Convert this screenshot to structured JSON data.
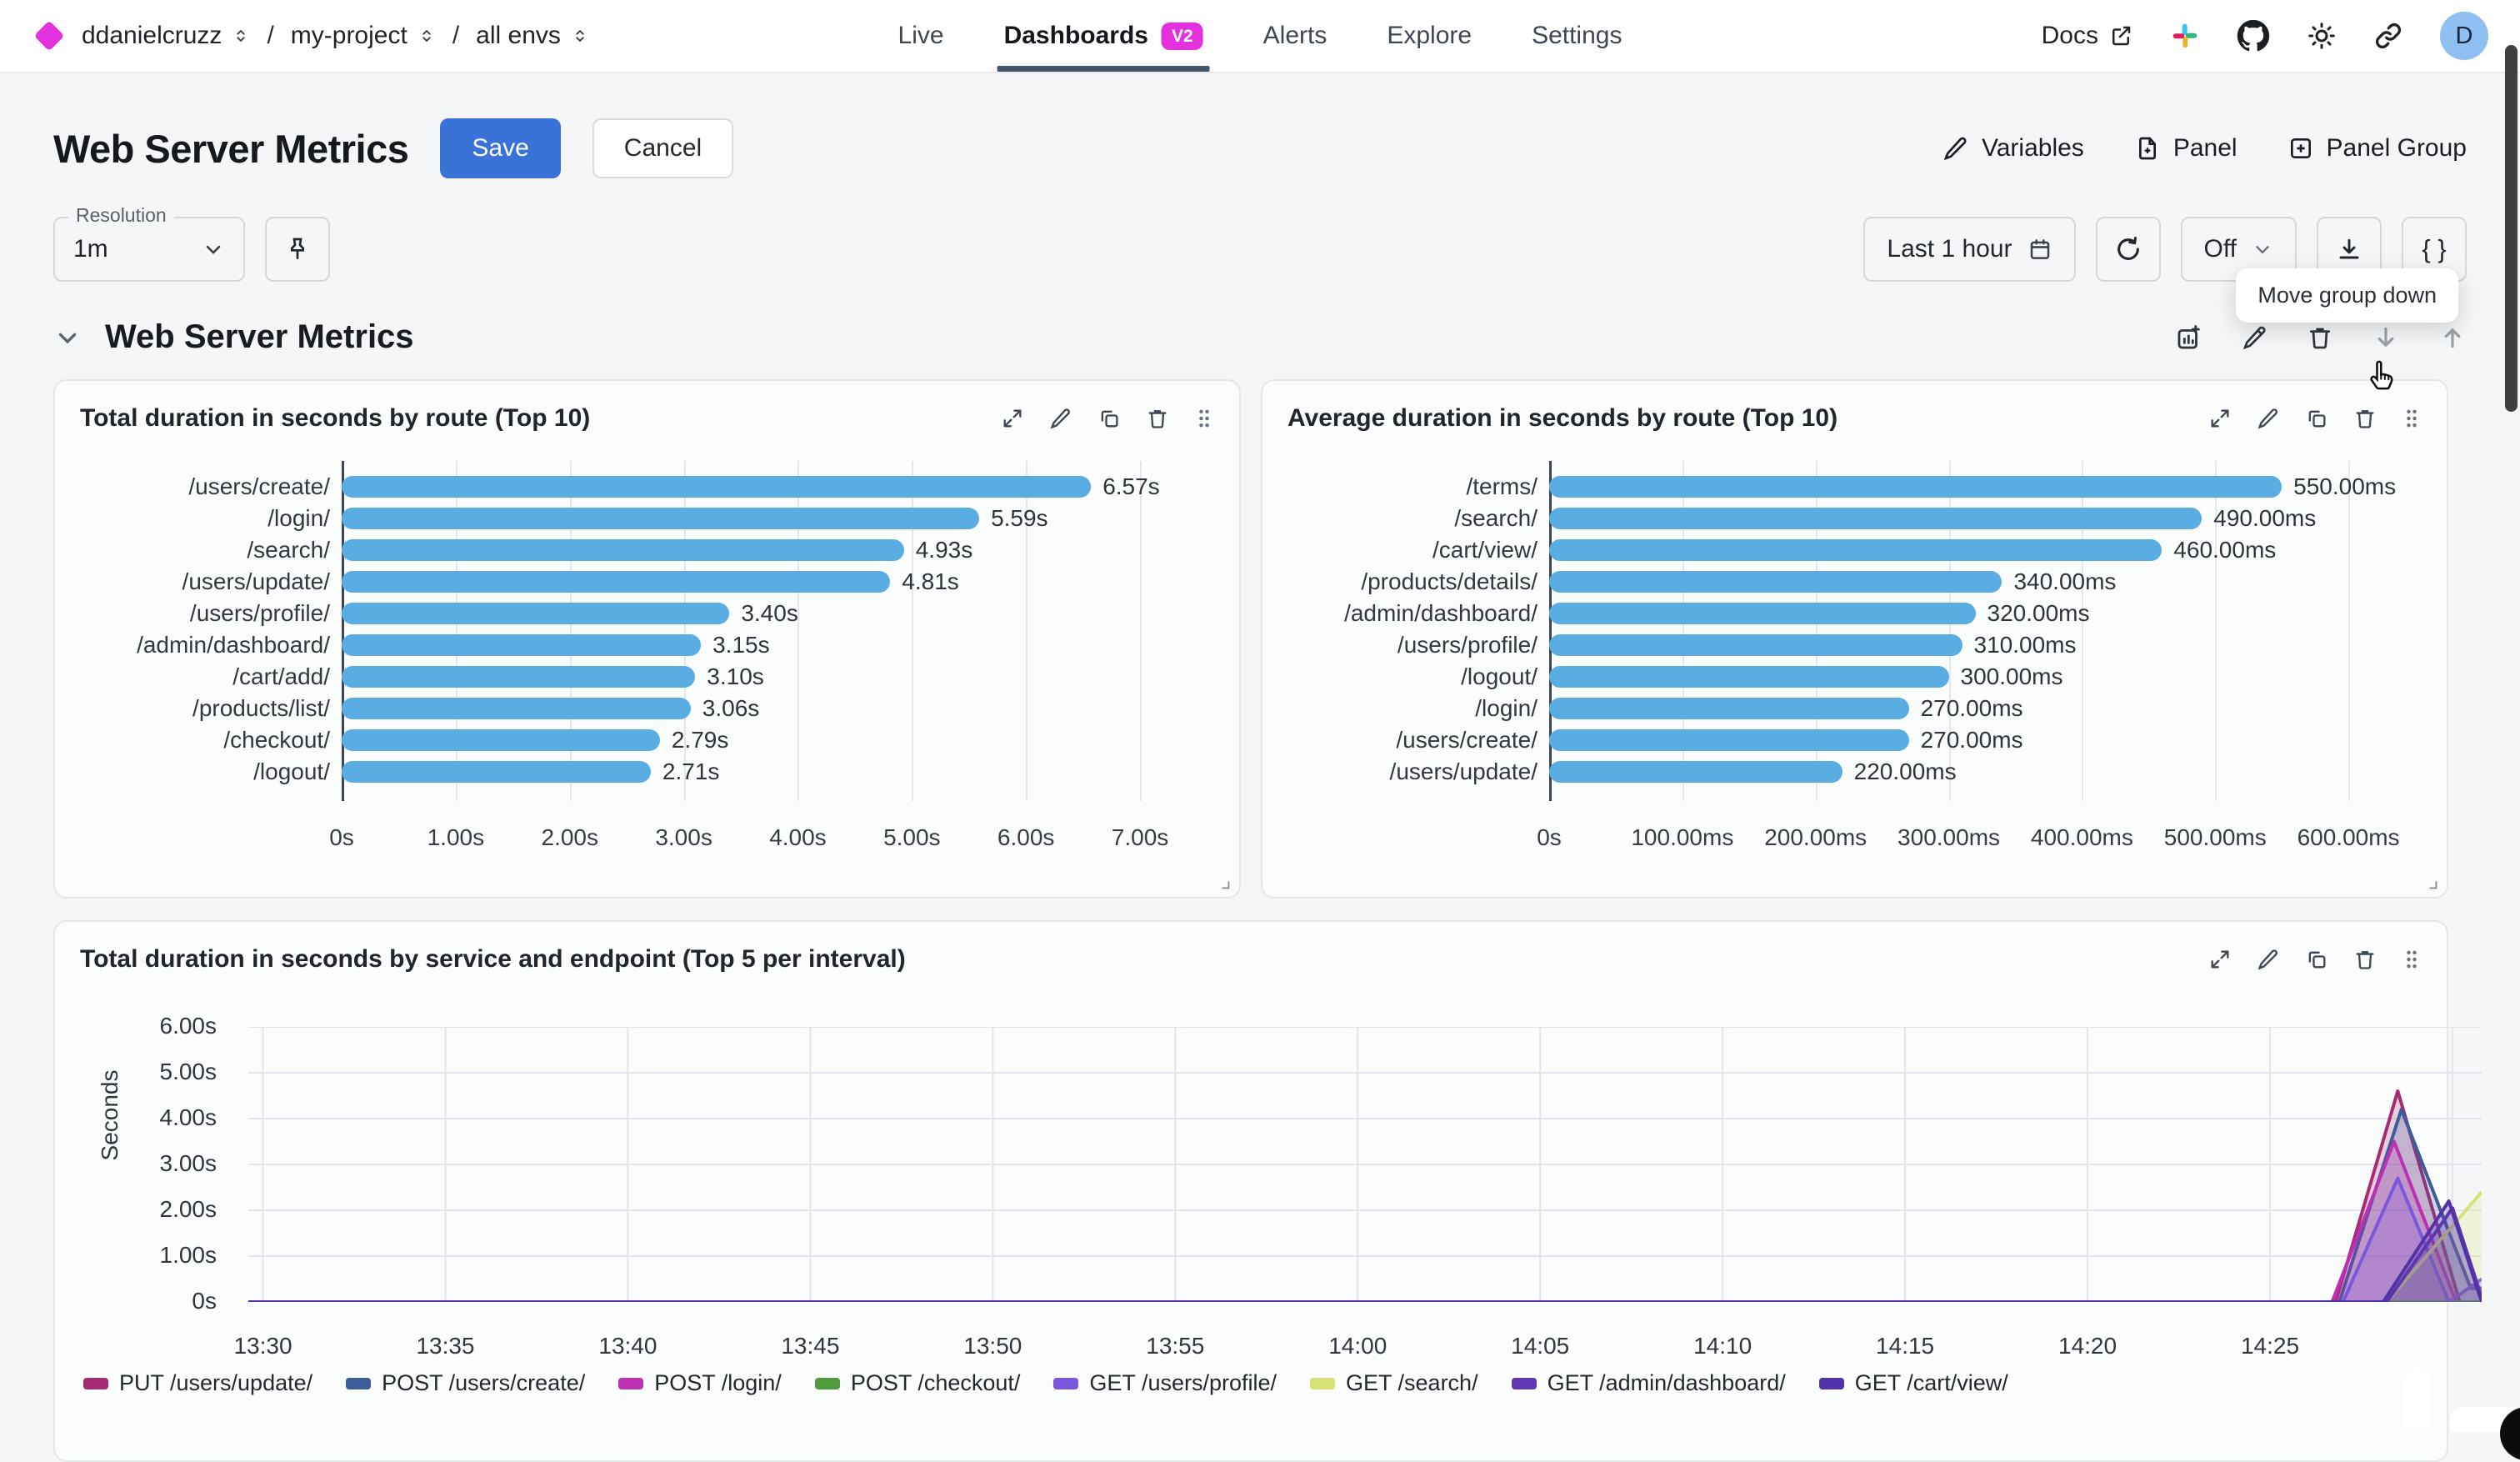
{
  "colors": {
    "logo_magenta": "#E331DD",
    "badge_magenta": "#E331DD",
    "accent_blue": "#3A72D8",
    "bar_blue": "#5AADE2",
    "nav_underline": "#46566B",
    "axis_dark": "#3D4358",
    "avatar_bg": "#8FC0F1"
  },
  "topbar": {
    "breadcrumbs": [
      "ddanielcruzz",
      "my-project",
      "all envs"
    ],
    "nav": [
      {
        "label": "Live",
        "active": false
      },
      {
        "label": "Dashboards",
        "active": true,
        "badge": "V2"
      },
      {
        "label": "Alerts",
        "active": false
      },
      {
        "label": "Explore",
        "active": false
      },
      {
        "label": "Settings",
        "active": false
      }
    ],
    "docs": "Docs",
    "icon_names": [
      "external-link-icon",
      "slack-icon",
      "github-icon",
      "sun-icon",
      "link-icon"
    ],
    "avatar": "D"
  },
  "toolbar": {
    "title": "Web Server Metrics",
    "save": "Save",
    "cancel": "Cancel",
    "variables": "Variables",
    "panel": "Panel",
    "panel_group": "Panel Group"
  },
  "controls": {
    "resolution_label": "Resolution",
    "resolution_value": "1m",
    "time_range": "Last 1 hour",
    "refresh_mode": "Off",
    "code_button": "{ }",
    "tooltip": "Move group down"
  },
  "group": {
    "title": "Web Server Metrics",
    "icon_names": [
      "add-chart-icon",
      "edit-icon",
      "delete-icon",
      "move-down-icon",
      "move-up-icon"
    ]
  },
  "panel_action_icons": [
    "expand-icon",
    "edit-icon",
    "duplicate-icon",
    "delete-icon",
    "drag-handle-icon"
  ],
  "chart_data": [
    {
      "type": "bar",
      "orientation": "horizontal",
      "title": "Total duration in seconds by route (Top 10)",
      "categories": [
        "/users/create/",
        "/login/",
        "/search/",
        "/users/update/",
        "/users/profile/",
        "/admin/dashboard/",
        "/cart/add/",
        "/products/list/",
        "/checkout/",
        "/logout/"
      ],
      "values": [
        6.57,
        5.59,
        4.93,
        4.81,
        3.4,
        3.15,
        3.1,
        3.06,
        2.79,
        2.71
      ],
      "value_labels": [
        "6.57s",
        "5.59s",
        "4.93s",
        "4.81s",
        "3.40s",
        "3.15s",
        "3.10s",
        "3.06s",
        "2.79s",
        "2.71s"
      ],
      "xticks": {
        "labels": [
          "0s",
          "1.00s",
          "2.00s",
          "3.00s",
          "4.00s",
          "5.00s",
          "6.00s",
          "7.00s"
        ],
        "values": [
          0,
          1,
          2,
          3,
          4,
          5,
          6,
          7
        ]
      },
      "xmax": 7.65,
      "bar_color": "#5AADE2",
      "grid": true
    },
    {
      "type": "bar",
      "orientation": "horizontal",
      "title": "Average duration in seconds by route (Top 10)",
      "categories": [
        "/terms/",
        "/search/",
        "/cart/view/",
        "/products/details/",
        "/admin/dashboard/",
        "/users/profile/",
        "/logout/",
        "/login/",
        "/users/create/",
        "/users/update/"
      ],
      "values": [
        550,
        490,
        460,
        340,
        320,
        310,
        300,
        270,
        270,
        220
      ],
      "value_labels": [
        "550.00ms",
        "490.00ms",
        "460.00ms",
        "340.00ms",
        "320.00ms",
        "310.00ms",
        "300.00ms",
        "270.00ms",
        "270.00ms",
        "220.00ms"
      ],
      "xticks": {
        "labels": [
          "0s",
          "100.00ms",
          "200.00ms",
          "300.00ms",
          "400.00ms",
          "500.00ms",
          "600.00ms"
        ],
        "values": [
          0,
          100,
          200,
          300,
          400,
          500,
          600
        ]
      },
      "xmax": 655,
      "bar_color": "#5AADE2",
      "grid": true
    },
    {
      "type": "area",
      "title": "Total duration in seconds by service and endpoint (Top 5 per interval)",
      "ylabel": "Seconds",
      "ylim": [
        0,
        6
      ],
      "yticks": [
        "0s",
        "1.00s",
        "2.00s",
        "3.00s",
        "4.00s",
        "5.00s",
        "6.00s"
      ],
      "x_tick_labels": [
        "13:30",
        "13:35",
        "13:40",
        "13:45",
        "13:50",
        "13:55",
        "14:00",
        "14:05",
        "14:10",
        "14:15",
        "14:20",
        "14:25"
      ],
      "x_tick_minutes": [
        0,
        5,
        10,
        15,
        20,
        25,
        30,
        35,
        40,
        45,
        50,
        55
      ],
      "grid_x_minutes": [
        0,
        5,
        10,
        15,
        20,
        25,
        30,
        35,
        40,
        45,
        50,
        55,
        60
      ],
      "x_domain": [
        -0.4,
        60.8
      ],
      "fill_opacity": 0.22,
      "legend_position": "bottom",
      "series": [
        {
          "name": "PUT /users/update/",
          "color": "#A62C72",
          "points": [
            [
              -0.4,
              0
            ],
            [
              56.8,
              0
            ],
            [
              58.5,
              4.6
            ],
            [
              60.2,
              0
            ],
            [
              60.8,
              0
            ]
          ]
        },
        {
          "name": "POST /users/create/",
          "color": "#3D5C9B",
          "points": [
            [
              -0.4,
              0
            ],
            [
              56.9,
              0
            ],
            [
              58.6,
              4.2
            ],
            [
              60.5,
              0.3
            ],
            [
              60.8,
              0.3
            ]
          ]
        },
        {
          "name": "POST /login/",
          "color": "#BD30B4",
          "points": [
            [
              -0.4,
              0
            ],
            [
              56.7,
              0
            ],
            [
              58.4,
              3.5
            ],
            [
              60.1,
              0
            ],
            [
              60.8,
              0
            ]
          ]
        },
        {
          "name": "POST /checkout/",
          "color": "#4E9C3E",
          "points": [
            [
              -0.4,
              0
            ],
            [
              60.8,
              0
            ]
          ]
        },
        {
          "name": "GET /users/profile/",
          "color": "#7B57DE",
          "points": [
            [
              -0.4,
              0
            ],
            [
              57.0,
              0
            ],
            [
              58.5,
              2.7
            ],
            [
              59.9,
              0
            ],
            [
              60.8,
              0.5
            ]
          ]
        },
        {
          "name": "GET /search/",
          "color": "#D6E273",
          "points": [
            [
              -0.4,
              0
            ],
            [
              58.2,
              0
            ],
            [
              60.8,
              2.4
            ]
          ]
        },
        {
          "name": "GET /admin/dashboard/",
          "color": "#6038B1",
          "points": [
            [
              -0.4,
              0
            ],
            [
              58.2,
              0
            ],
            [
              60.0,
              2.05
            ],
            [
              60.8,
              0.1
            ]
          ]
        },
        {
          "name": "GET /cart/view/",
          "color": "#5232A8",
          "points": [
            [
              -0.4,
              0
            ],
            [
              58.1,
              0
            ],
            [
              59.9,
              2.2
            ],
            [
              60.8,
              0
            ]
          ]
        }
      ]
    }
  ]
}
